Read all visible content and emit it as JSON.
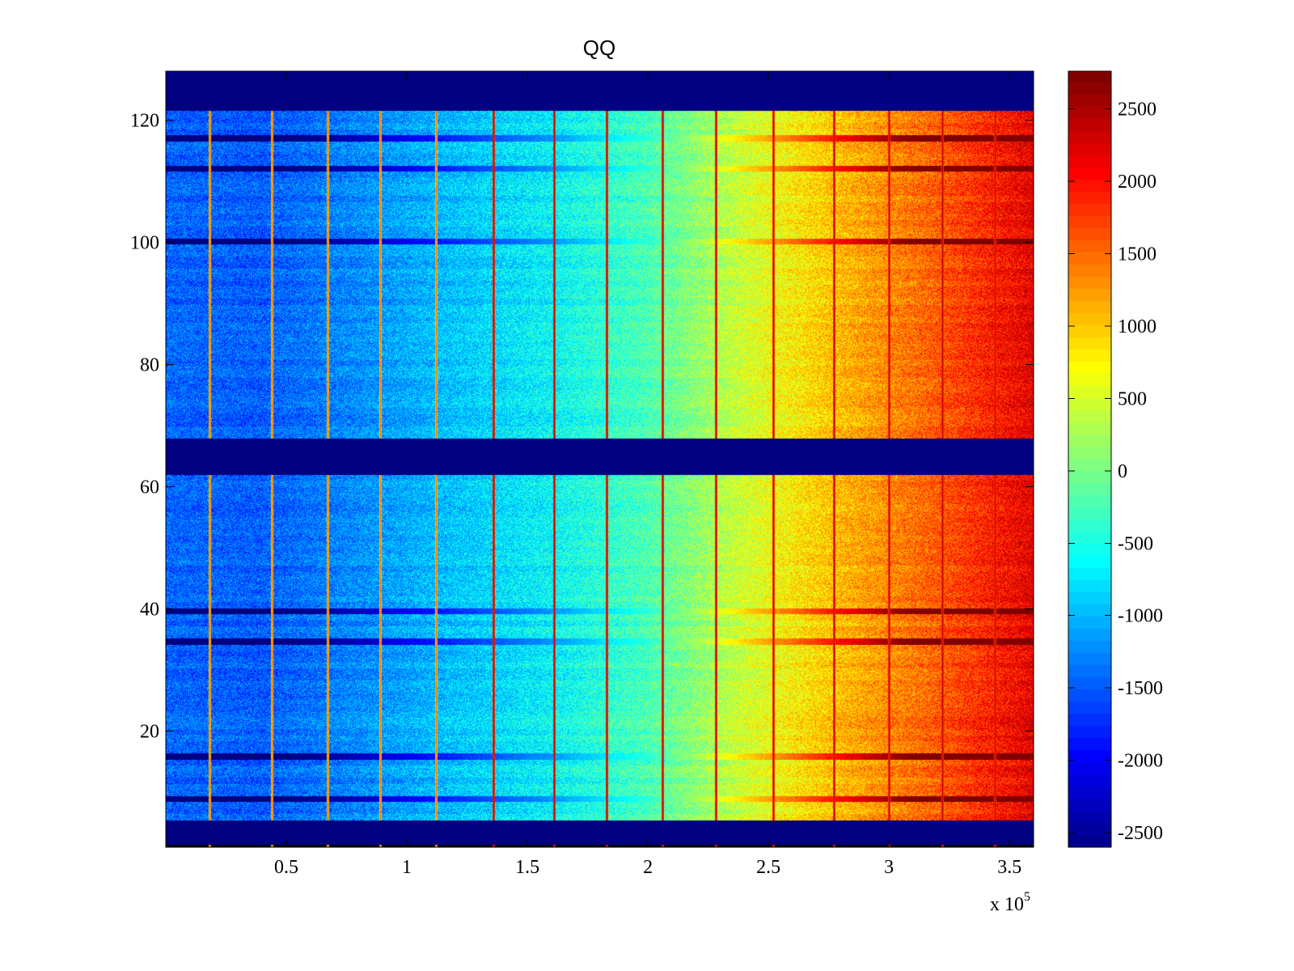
{
  "chart_data": {
    "type": "heatmap",
    "title": "QQ",
    "xlabel": "",
    "ylabel": "",
    "x_exponent_label": "x 10",
    "x_exponent_power": "5",
    "xlim": [
      0,
      3.6
    ],
    "ylim": [
      1,
      128
    ],
    "x_ticks": [
      0.5,
      1,
      1.5,
      2,
      2.5,
      3,
      3.5
    ],
    "x_tick_labels": [
      "0.5",
      "1",
      "1.5",
      "2",
      "2.5",
      "3",
      "3.5"
    ],
    "y_ticks": [
      20,
      40,
      60,
      80,
      100,
      120
    ],
    "y_tick_labels": [
      "20",
      "40",
      "60",
      "80",
      "100",
      "120"
    ],
    "colormap": "jet",
    "clim": [
      -2600,
      2760
    ],
    "colorbar_ticks": [
      2500,
      2000,
      1500,
      1000,
      500,
      0,
      -500,
      -1000,
      -1500,
      -2000,
      -2500
    ],
    "colorbar_tick_labels": [
      "2500",
      "2000",
      "1500",
      "1000",
      "500",
      "0",
      "-500",
      "-1000",
      "-1500",
      "-2000",
      "-2500"
    ],
    "empty_rows": [
      [
        1,
        4
      ],
      [
        62,
        67
      ],
      [
        122,
        128
      ]
    ],
    "value_gradient_x": [
      0.0,
      0.4,
      0.8,
      1.2,
      1.6,
      2.0,
      2.4,
      2.8,
      3.2,
      3.6
    ],
    "value_gradient_level": [
      -1400,
      -1450,
      -1200,
      -900,
      -600,
      -200,
      500,
      1100,
      1600,
      2200
    ],
    "vertical_lines_x": [
      0.18,
      0.44,
      0.67,
      0.89,
      1.12,
      1.36,
      1.61,
      1.83,
      2.06,
      2.28,
      2.52,
      2.77,
      3.0,
      3.22,
      3.44
    ],
    "strong_rows": [
      8,
      15,
      34,
      39,
      100,
      112,
      117
    ],
    "colors": {
      "background": "#ffffff",
      "empty_band": "#000080"
    }
  }
}
